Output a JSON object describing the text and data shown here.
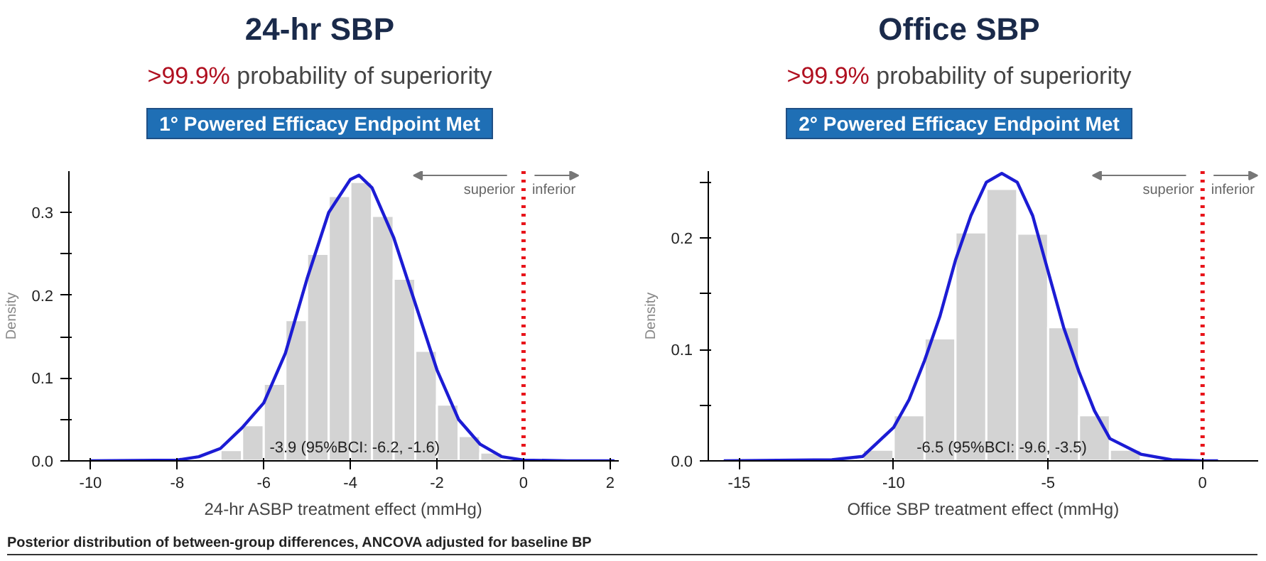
{
  "chart_data": [
    {
      "type": "histogram",
      "title": "24-hr SBP",
      "subtitle": ">99.9% probability of superiority",
      "xlabel": "24-hr ASBP treatment effect (mmHg)",
      "ylabel": "Density",
      "bins": [
        -7,
        -6.5,
        -6,
        -5.5,
        -5,
        -4.5,
        -4,
        -3.5,
        -3,
        -2.5,
        -2,
        -1.5,
        -1,
        -0.5
      ],
      "values": [
        0.013,
        0.043,
        0.093,
        0.17,
        0.25,
        0.32,
        0.337,
        0.296,
        0.22,
        0.133,
        0.068,
        0.03,
        0.01
      ],
      "color": "#d3d3d3",
      "series": [
        {
          "type": "line",
          "color": "#1c1cd4",
          "x": [
            -10,
            -8,
            -7.5,
            -7,
            -6.5,
            -6,
            -5.5,
            -5,
            -4.5,
            -4,
            -3.8,
            -3.5,
            -3,
            -2.5,
            -2,
            -1.5,
            -1,
            -0.5,
            0,
            1,
            2.1
          ],
          "values": [
            0,
            0.001,
            0.005,
            0.015,
            0.04,
            0.07,
            0.13,
            0.22,
            0.3,
            0.34,
            0.345,
            0.33,
            0.27,
            0.19,
            0.11,
            0.05,
            0.02,
            0.005,
            0.001,
            0,
            0
          ]
        }
      ],
      "ref_lines": [
        {
          "axis": "x",
          "value": 0,
          "color": "#e8141a",
          "line_style": "dotted"
        }
      ],
      "annotations": [
        "superior",
        "inferior",
        "1° Powered Efficacy Endpoint Met",
        {
          "text": "-3.9 (95%BCI: -6.2, -1.6)",
          "x": -3.9,
          "y": 0
        },
        "Posterior distribution of between-group differences, ANCOVA adjusted for baseline BP"
      ],
      "xlim": [
        -10.5,
        2.2
      ],
      "ylim": [
        0,
        0.35
      ],
      "xticks": [
        -10,
        -8,
        -6,
        -4,
        -2,
        0,
        2
      ],
      "yticks": [
        {
          "value": 0,
          "label": "0.0"
        },
        {
          "value": 0.05,
          "label": null
        },
        {
          "value": 0.1,
          "label": "0.1"
        },
        {
          "value": 0.15,
          "label": null
        },
        {
          "value": 0.2,
          "label": "0.2"
        },
        {
          "value": 0.25,
          "label": null
        },
        {
          "value": 0.3,
          "label": "0.3"
        }
      ],
      "grid": false
    },
    {
      "type": "histogram",
      "title": "Office SBP",
      "subtitle": ">99.9% probability of superiority",
      "xlabel": "Office SBP treatment effect (mmHg)",
      "ylabel": "Density",
      "bins": [
        -11,
        -10,
        -9,
        -8,
        -7,
        -6,
        -5,
        -4,
        -3,
        -2
      ],
      "values": [
        0.01,
        0.041,
        0.11,
        0.205,
        0.244,
        0.204,
        0.12,
        0.041,
        0.01
      ],
      "color": "#d3d3d3",
      "series": [
        {
          "type": "line",
          "color": "#1c1cd4",
          "x": [
            -15.5,
            -12,
            -11,
            -10,
            -9.5,
            -9,
            -8.5,
            -8,
            -7.5,
            -7,
            -6.5,
            -6,
            -5.5,
            -5,
            -4.5,
            -4,
            -3.5,
            -3,
            -2,
            -1,
            0,
            0.5
          ],
          "values": [
            0,
            0.001,
            0.004,
            0.03,
            0.055,
            0.09,
            0.13,
            0.18,
            0.22,
            0.25,
            0.258,
            0.25,
            0.22,
            0.17,
            0.12,
            0.08,
            0.045,
            0.02,
            0.006,
            0.001,
            0,
            0
          ]
        }
      ],
      "ref_lines": [
        {
          "axis": "x",
          "value": 0,
          "color": "#e8141a",
          "line_style": "dotted"
        }
      ],
      "annotations": [
        "superior",
        "inferior",
        "2° Powered Efficacy Endpoint Met",
        {
          "text": "-6.5 (95%BCI: -9.6, -3.5)",
          "x": -6.5,
          "y": 0
        }
      ],
      "xlim": [
        -16,
        1.8
      ],
      "ylim": [
        0,
        0.26
      ],
      "xticks": [
        -15,
        -10,
        -5,
        0
      ],
      "yticks": [
        {
          "value": 0,
          "label": "0.0"
        },
        {
          "value": 0.05,
          "label": null
        },
        {
          "value": 0.1,
          "label": "0.1"
        },
        {
          "value": 0.15,
          "label": null
        },
        {
          "value": 0.2,
          "label": "0.2"
        },
        {
          "value": 0.25,
          "label": null
        }
      ],
      "grid": false
    }
  ]
}
